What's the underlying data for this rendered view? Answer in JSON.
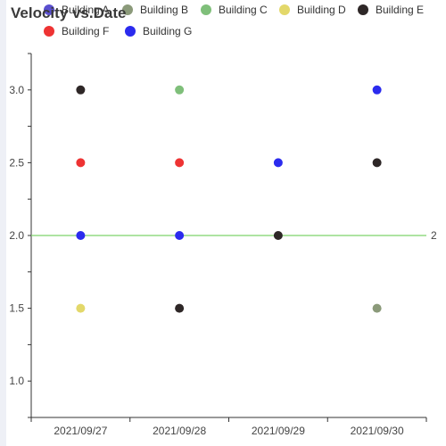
{
  "chart_data": {
    "type": "scatter",
    "title": "Velocity vs.Date",
    "xlabel": "",
    "ylabel": "",
    "categories": [
      "2021/09/27",
      "2021/09/28",
      "2021/09/29",
      "2021/09/30"
    ],
    "ylim": [
      0.75,
      3.25
    ],
    "yticks": [
      1.0,
      1.5,
      2.0,
      2.5,
      3.0
    ],
    "ytick_labels": [
      "1.0",
      "1.5",
      "2.0",
      "2.5",
      "3.0"
    ],
    "grid": false,
    "legend_position": "top",
    "reference_line": {
      "y": 2,
      "label": "2",
      "color": "#7ed36a"
    },
    "series": [
      {
        "name": "Building A",
        "color": "#5a4fcf",
        "points": []
      },
      {
        "name": "Building B",
        "color": "#8b9a7a",
        "points": [
          [
            "2021/09/30",
            1.5
          ]
        ]
      },
      {
        "name": "Building C",
        "color": "#7fbf7a",
        "points": [
          [
            "2021/09/28",
            3.0
          ]
        ]
      },
      {
        "name": "Building D",
        "color": "#e3d86a",
        "points": [
          [
            "2021/09/27",
            1.5
          ]
        ]
      },
      {
        "name": "Building E",
        "color": "#2e2727",
        "points": [
          [
            "2021/09/27",
            3.0
          ],
          [
            "2021/09/28",
            1.5
          ],
          [
            "2021/09/30",
            2.5
          ],
          [
            "2021/09/29",
            2.0
          ]
        ]
      },
      {
        "name": "Building F",
        "color": "#ee3333",
        "points": [
          [
            "2021/09/27",
            2.5
          ],
          [
            "2021/09/28",
            2.5
          ]
        ]
      },
      {
        "name": "Building G",
        "color": "#2b2bee",
        "points": [
          [
            "2021/09/27",
            2.0
          ],
          [
            "2021/09/28",
            2.0
          ],
          [
            "2021/09/29",
            2.5
          ],
          [
            "2021/09/30",
            3.0
          ]
        ]
      }
    ]
  }
}
